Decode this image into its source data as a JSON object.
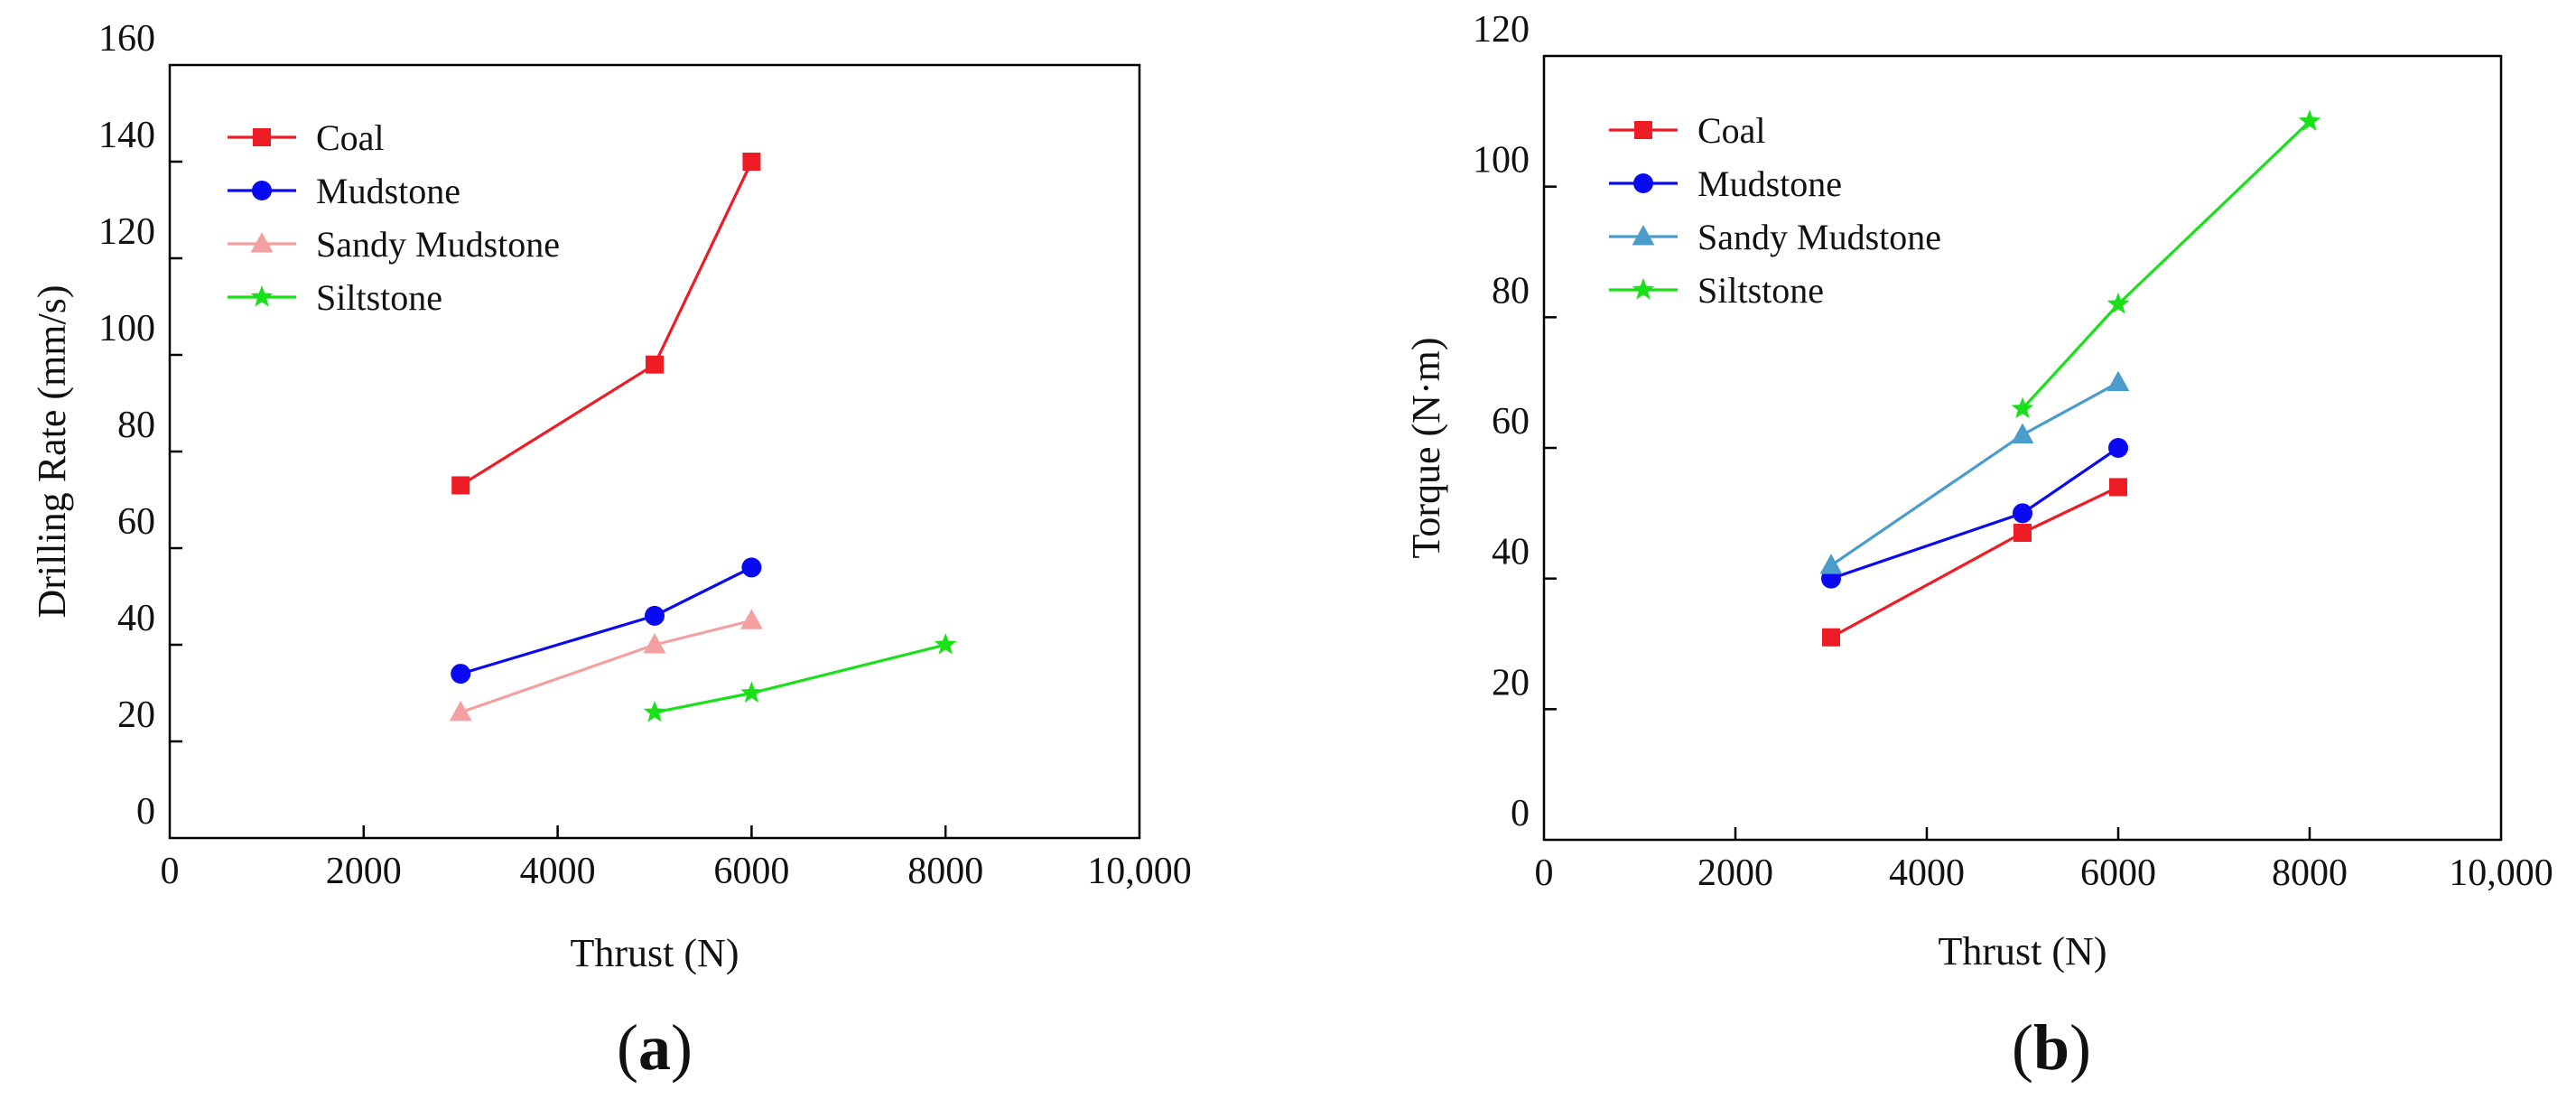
{
  "chart_data": [
    {
      "type": "line",
      "panel_label_left": "(",
      "panel_label_letter": "a",
      "panel_label_right": ")",
      "title": "",
      "xlabel": "Thrust (N)",
      "ylabel": "Drilling Rate (mm/s)",
      "xlim": [
        0,
        10000
      ],
      "ylim": [
        0,
        160
      ],
      "xticks": [
        0,
        2000,
        4000,
        6000,
        8000,
        10000
      ],
      "xtick_labels": [
        "0",
        "2000",
        "4000",
        "6000",
        "8000",
        "10,000"
      ],
      "yticks": [
        0,
        20,
        40,
        60,
        80,
        100,
        120,
        140,
        160
      ],
      "ytick_labels": [
        "0",
        "20",
        "40",
        "60",
        "80",
        "100",
        "120",
        "140",
        "160"
      ],
      "grid": false,
      "legend_position": "top-left",
      "series": [
        {
          "name": "Coal",
          "color": "#ee1c25",
          "marker": "square",
          "x": [
            3000,
            5000,
            6000
          ],
          "y": [
            73,
            98,
            140
          ]
        },
        {
          "name": "Mudstone",
          "color": "#0a0af0",
          "marker": "circle",
          "x": [
            3000,
            5000,
            6000
          ],
          "y": [
            34,
            46,
            56
          ]
        },
        {
          "name": "Sandy Mudstone",
          "color": "#f4a0a0",
          "marker": "triangle",
          "x": [
            3000,
            5000,
            6000
          ],
          "y": [
            26,
            40,
            45
          ]
        },
        {
          "name": "Siltstone",
          "color": "#19e019",
          "marker": "star",
          "x": [
            5000,
            6000,
            8000
          ],
          "y": [
            26,
            30,
            40
          ]
        }
      ]
    },
    {
      "type": "line",
      "panel_label_left": "(",
      "panel_label_letter": "b",
      "panel_label_right": ")",
      "title": "",
      "xlabel": "Thrust (N)",
      "ylabel": "Torque (N·m)",
      "xlim": [
        0,
        10000
      ],
      "ylim": [
        0,
        120
      ],
      "xticks": [
        0,
        2000,
        4000,
        6000,
        8000,
        10000
      ],
      "xtick_labels": [
        "0",
        "2000",
        "4000",
        "6000",
        "8000",
        "10,000"
      ],
      "yticks": [
        0,
        20,
        40,
        60,
        80,
        100,
        120
      ],
      "ytick_labels": [
        "0",
        "20",
        "40",
        "60",
        "80",
        "100",
        "120"
      ],
      "grid": false,
      "legend_position": "top-left",
      "series": [
        {
          "name": "Coal",
          "color": "#ee1c25",
          "marker": "square",
          "x": [
            3000,
            5000,
            6000
          ],
          "y": [
            31,
            47,
            54
          ]
        },
        {
          "name": "Mudstone",
          "color": "#0a0af0",
          "marker": "circle",
          "x": [
            3000,
            5000,
            6000
          ],
          "y": [
            40,
            50,
            60
          ]
        },
        {
          "name": "Sandy Mudstone",
          "color": "#4a9ccc",
          "marker": "triangle",
          "x": [
            3000,
            5000,
            6000
          ],
          "y": [
            42,
            62,
            70
          ]
        },
        {
          "name": "Siltstone",
          "color": "#19e019",
          "marker": "star",
          "x": [
            5000,
            6000,
            8000
          ],
          "y": [
            66,
            82,
            110
          ]
        }
      ]
    }
  ]
}
